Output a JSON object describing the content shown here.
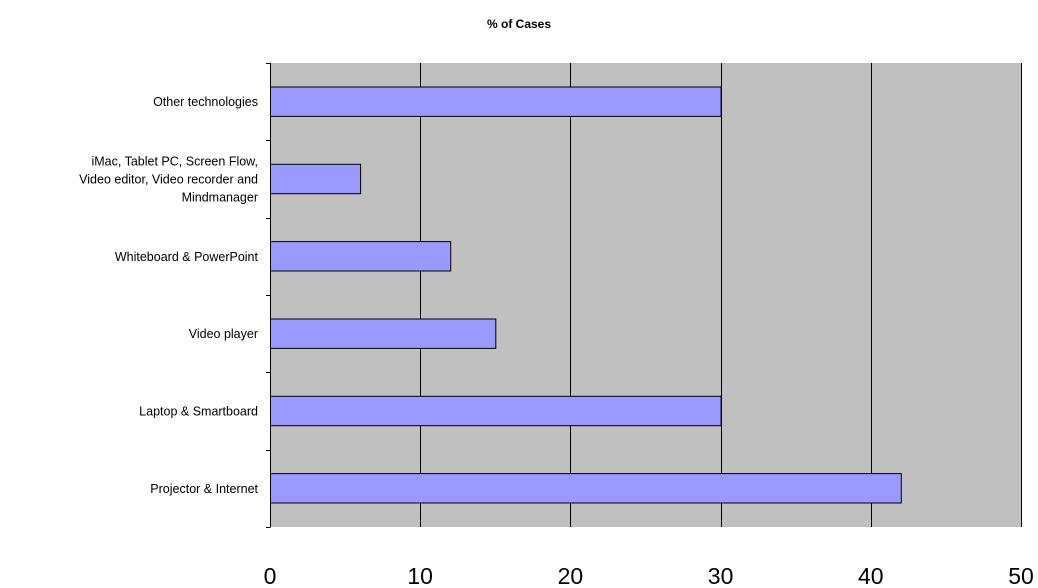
{
  "chart_data": {
    "type": "bar",
    "orientation": "horizontal",
    "title": "% of Cases",
    "xlabel": "",
    "ylabel": "",
    "categories": [
      "Other technologies",
      "iMac, Tablet PC, Screen Flow, Video editor, Video recorder and Mindmanager",
      "Whiteboard & PowerPoint",
      "Video player",
      "Laptop & Smartboard",
      "Projector & Internet"
    ],
    "category_lines": [
      [
        "Other technologies"
      ],
      [
        "iMac, Tablet PC, Screen Flow,",
        "Video editor, Video recorder and",
        "Mindmanager"
      ],
      [
        "Whiteboard & PowerPoint"
      ],
      [
        "Video player"
      ],
      [
        "Laptop & Smartboard"
      ],
      [
        "Projector & Internet"
      ]
    ],
    "values": [
      30,
      6,
      12,
      15,
      30,
      42
    ],
    "xlim": [
      0,
      50
    ],
    "xticks": [
      0,
      10,
      20,
      30,
      40,
      50
    ],
    "grid": true,
    "legend": false,
    "colors": {
      "bar_fill": "#9999ff",
      "bar_stroke": "#000000",
      "plot_background": "#c0c0c0",
      "gridline": "#000000"
    }
  }
}
